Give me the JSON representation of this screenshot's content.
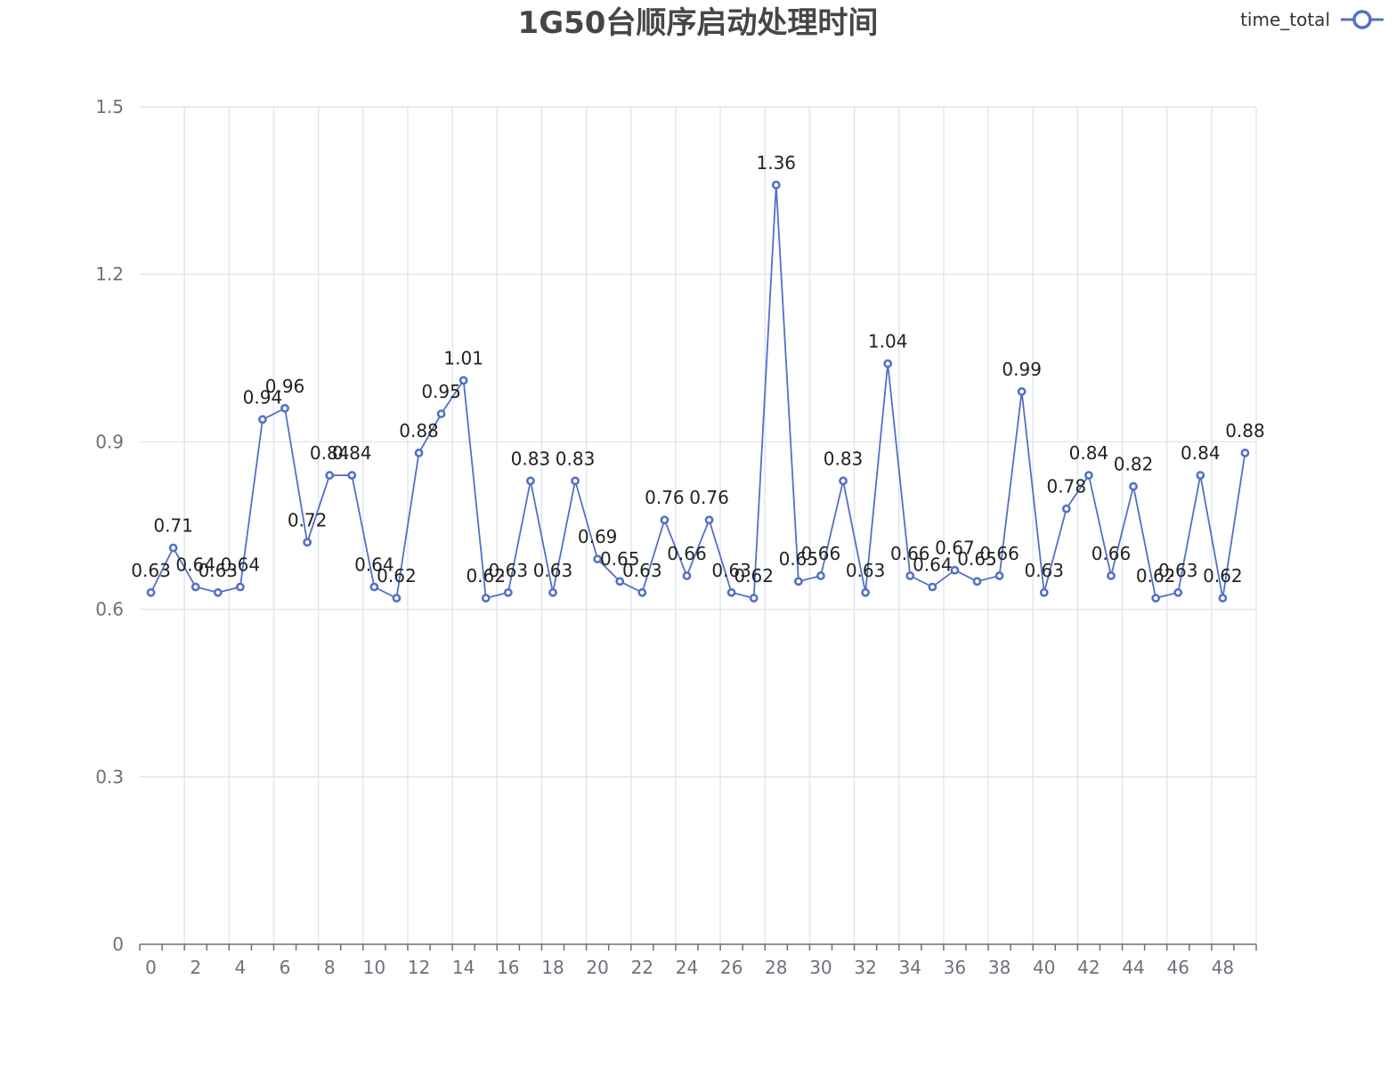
{
  "chart_data": {
    "type": "line",
    "title": "1G50台顺序启动处理时间",
    "xlabel": "",
    "ylabel": "",
    "categories": [
      0,
      1,
      2,
      3,
      4,
      5,
      6,
      7,
      8,
      9,
      10,
      11,
      12,
      13,
      14,
      15,
      16,
      17,
      18,
      19,
      20,
      21,
      22,
      23,
      24,
      25,
      26,
      27,
      28,
      29,
      30,
      31,
      32,
      33,
      34,
      35,
      36,
      37,
      38,
      39,
      40,
      41,
      42,
      43,
      44,
      45,
      46,
      47,
      48,
      49
    ],
    "x_tick_labels": [
      "0",
      "2",
      "4",
      "6",
      "8",
      "10",
      "12",
      "14",
      "16",
      "18",
      "20",
      "22",
      "24",
      "26",
      "28",
      "30",
      "32",
      "34",
      "36",
      "38",
      "40",
      "42",
      "44",
      "46",
      "48"
    ],
    "y_tick_labels": [
      "0",
      "0.3",
      "0.6",
      "0.9",
      "1.2",
      "1.5"
    ],
    "ylim": [
      0,
      1.5
    ],
    "grid": true,
    "legend_position": "top-right",
    "series": [
      {
        "name": "time_total",
        "color": "#5470c6",
        "values": [
          0.63,
          0.71,
          0.64,
          0.63,
          0.64,
          0.94,
          0.96,
          0.72,
          0.84,
          0.84,
          0.64,
          0.62,
          0.88,
          0.95,
          1.01,
          0.62,
          0.63,
          0.83,
          0.63,
          0.83,
          0.69,
          0.65,
          0.63,
          0.76,
          0.66,
          0.76,
          0.63,
          0.62,
          1.36,
          0.65,
          0.66,
          0.83,
          0.63,
          1.04,
          0.66,
          0.64,
          0.67,
          0.65,
          0.66,
          0.99,
          0.63,
          0.78,
          0.84,
          0.66,
          0.82,
          0.62,
          0.63,
          0.84,
          0.62,
          0.88
        ],
        "labels": [
          "0.63",
          "0.71",
          "0.64",
          "0.63",
          "0.64",
          "0.94",
          "0.96",
          "0.72",
          "0.84",
          "0.84",
          "0.64",
          "0.62",
          "0.88",
          "0.95",
          "1.01",
          "0.62",
          "0.63",
          "0.83",
          "0.63",
          "0.83",
          "0.69",
          "0.65",
          "0.63",
          "0.76",
          "0.66",
          "0.76",
          "0.63",
          "0.62",
          "1.36",
          "0.65",
          "0.66",
          "0.83",
          "0.63",
          "1.04",
          "0.66",
          "0.64",
          "0.67",
          "0.65",
          "0.66",
          "0.99",
          "0.63",
          "0.78",
          "0.84",
          "0.66",
          "0.82",
          "0.62",
          "0.63",
          "0.84",
          "0.62",
          "0.88"
        ]
      }
    ]
  }
}
